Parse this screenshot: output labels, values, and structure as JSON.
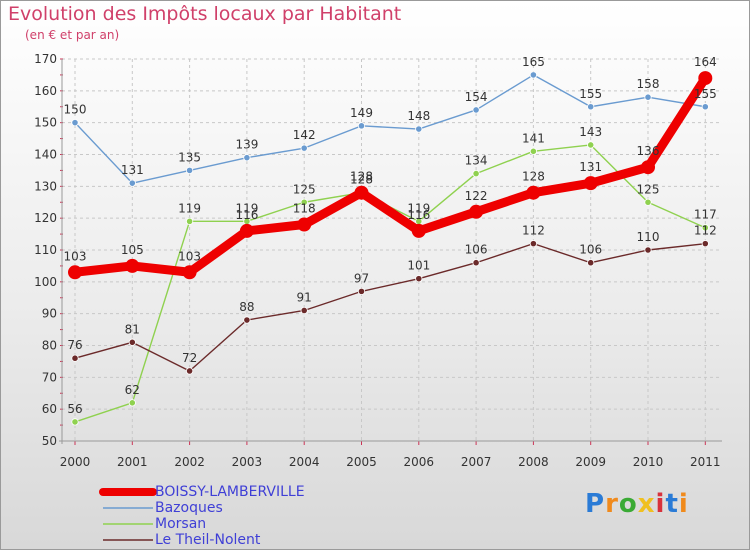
{
  "header": {
    "title": "Evolution des Impôts locaux par Habitant",
    "subtitle": "(en € et par an)"
  },
  "logo": {
    "text": "Proxiti"
  },
  "chart_data": {
    "type": "line",
    "title": "Evolution des Impôts locaux par Habitant",
    "subtitle": "(en € et par an)",
    "xlabel": "",
    "ylabel": "",
    "x": [
      "2000",
      "2001",
      "2002",
      "2003",
      "2004",
      "2005",
      "2006",
      "2007",
      "2008",
      "2009",
      "2010",
      "2011"
    ],
    "ylim": [
      50,
      170
    ],
    "yticks": [
      50,
      60,
      70,
      80,
      90,
      100,
      110,
      120,
      130,
      140,
      150,
      160,
      170
    ],
    "grid": true,
    "legend_position": "bottom-left",
    "series": [
      {
        "name": "BOISSY-LAMBERVILLE",
        "color": "#ee0000",
        "emphasis": true,
        "values": [
          103,
          105,
          103,
          116,
          118,
          128,
          116,
          122,
          128,
          131,
          136,
          164
        ],
        "labels": [
          "103",
          "105",
          "103",
          "116",
          "118",
          "128",
          "116",
          "122",
          "128",
          "131",
          "136",
          "164"
        ]
      },
      {
        "name": "Bazoques",
        "color": "#6a9bd0",
        "values": [
          150,
          131,
          135,
          139,
          142,
          149,
          148,
          154,
          165,
          155,
          158,
          155
        ],
        "labels": [
          "150",
          "131",
          "135",
          "139",
          "142",
          "149",
          "148",
          "154",
          "165",
          "155",
          "158",
          "155"
        ]
      },
      {
        "name": "Morsan",
        "color": "#8fd14f",
        "values": [
          56,
          62,
          119,
          119,
          125,
          128,
          119,
          134,
          141,
          143,
          125,
          117
        ],
        "labels": [
          "56",
          "62",
          "119",
          "119",
          "125",
          "128",
          "119",
          "134",
          "141",
          "143",
          "125",
          "117"
        ]
      },
      {
        "name": "Le Theil-Nolent",
        "color": "#6b2a2a",
        "values": [
          76,
          81,
          72,
          88,
          91,
          97,
          101,
          106,
          112,
          106,
          110,
          112
        ],
        "labels": [
          "76",
          "81",
          "72",
          "88",
          "91",
          "97",
          "101",
          "106",
          "112",
          "106",
          "110",
          "112"
        ]
      }
    ]
  }
}
